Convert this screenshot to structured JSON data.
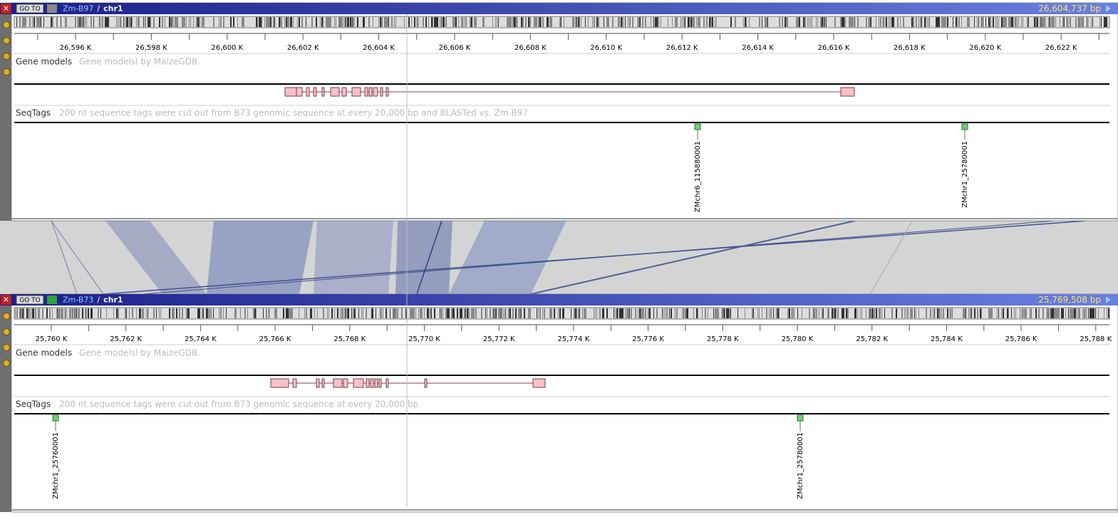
{
  "panels": [
    {
      "genome": "Zm-B97",
      "separator": "/",
      "chromosome": "chr1",
      "position": "26,604,737 bp",
      "goto": "GO TO",
      "ruler": [
        "26,596 K",
        "26,598 K",
        "26,600 K",
        "26,602 K",
        "26,604 K",
        "26,606 K",
        "26,608 K",
        "26,610 K",
        "26,612 K",
        "26,614 K",
        "26,616 K",
        "26,618 K",
        "26,620 K",
        "26,622 K"
      ],
      "tracks": [
        {
          "label": "Gene models",
          "description": "Gene modelsl by MaizeGDB."
        },
        {
          "label": "SeqTags",
          "description": "200 nt sequence tags were cut out from B73 genomic sequence at every 20,000 bp and BLASTed vs. Zm-B97"
        }
      ],
      "seqtags": [
        "ZMchr6_115880001",
        "ZMchr1_25780001"
      ]
    },
    {
      "genome": "Zm-B73",
      "separator": "/",
      "chromosome": "chr1",
      "position": "25,769,508 bp",
      "goto": "GO TO",
      "ruler": [
        "25,760 K",
        "25,762 K",
        "25,764 K",
        "25,766 K",
        "25,768 K",
        "25,770 K",
        "25,772 K",
        "25,774 K",
        "25,776 K",
        "25,778 K",
        "25,780 K",
        "25,782 K",
        "25,784 K",
        "25,786 K",
        "25,788 K"
      ],
      "tracks": [
        {
          "label": "Gene models",
          "description": "Gene modelsl by MaizeGDB."
        },
        {
          "label": "SeqTags",
          "description": "200 nt sequence tags were cut out from B73 genomic sequence at every 20,000 bp"
        }
      ],
      "seqtags": [
        "ZMchr1_25760001",
        "ZMchr1_25780001"
      ]
    }
  ]
}
